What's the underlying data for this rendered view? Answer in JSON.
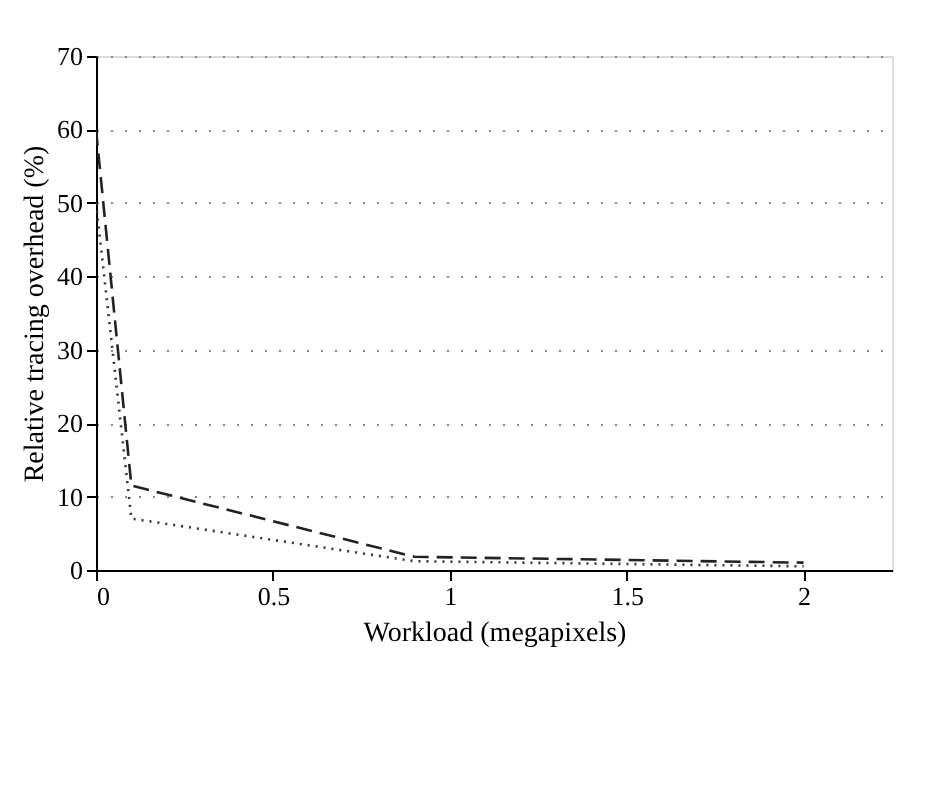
{
  "chart_data": {
    "type": "line",
    "xlabel": "Workload (megapixels)",
    "ylabel": "Relative tracing overhead (%)",
    "series": [
      {
        "color": "#333333",
        "line_style": "dotted",
        "x": [
          0,
          0.1,
          0.9,
          2
        ],
        "values": [
          50,
          7,
          1.2,
          0.5
        ]
      },
      {
        "color": "#222222",
        "line_style": "dashed",
        "x": [
          0,
          0.1,
          0.9,
          2
        ],
        "values": [
          60,
          11.5,
          1.8,
          1.0
        ]
      }
    ],
    "xlim": [
      0,
      2.25
    ],
    "xticks": [
      0,
      0.5,
      1,
      1.5,
      2
    ],
    "ylim": [
      0,
      70
    ],
    "yticks": [
      0,
      10,
      20,
      30,
      40,
      50,
      60,
      70
    ],
    "grid": "y"
  }
}
